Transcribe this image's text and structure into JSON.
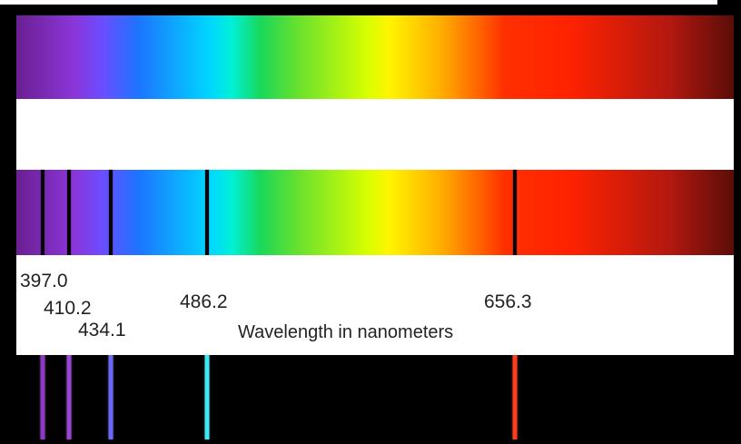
{
  "diagram": {
    "axis_title": "Wavelength in nanometers",
    "spectral_lines": [
      {
        "wavelength": "397.0",
        "emission_color": "#8f36c8"
      },
      {
        "wavelength": "410.2",
        "emission_color": "#9b45d6"
      },
      {
        "wavelength": "434.1",
        "emission_color": "#6e67ff"
      },
      {
        "wavelength": "486.2",
        "emission_color": "#3ce9f0"
      },
      {
        "wavelength": "656.3",
        "emission_color": "#ff3a1e"
      }
    ],
    "spectrum_colors": {
      "violet": "#6a1f91",
      "blue": "#1d74ff",
      "cyan": "#00d6ff",
      "green": "#18d85b",
      "yellow": "#fff400",
      "orange": "#ffb000",
      "red": "#ff2200",
      "dark_red": "#5b0d08"
    }
  }
}
